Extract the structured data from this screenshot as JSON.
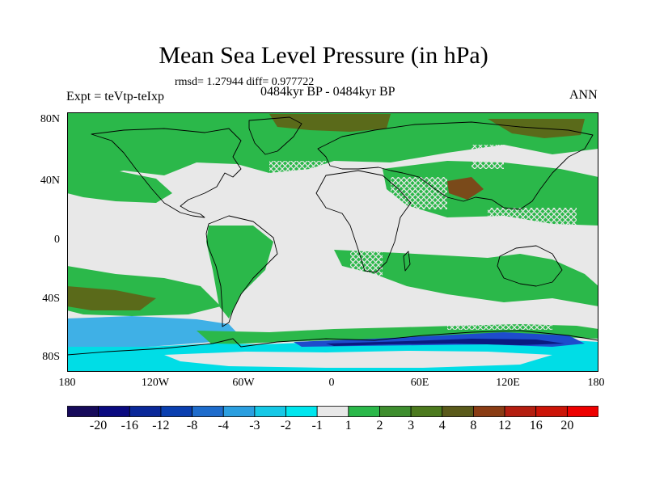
{
  "title": "Mean Sea Level Pressure (in hPa)",
  "stats": "rmsd= 1.27944 diff= 0.977722",
  "period": "0484kyr BP - 0484kyr BP",
  "experiment": "Expt = teVtp-teIxp",
  "season": "ANN",
  "lat_labels": [
    "80N",
    "40N",
    "0",
    "40S",
    "80S"
  ],
  "lon_labels": [
    "180",
    "120W",
    "60W",
    "0",
    "60E",
    "120E",
    "180"
  ],
  "colorbar": {
    "labels": [
      "-20",
      "-16",
      "-12",
      "-8",
      "-4",
      "-3",
      "-2",
      "-1",
      "1",
      "2",
      "3",
      "4",
      "8",
      "12",
      "16",
      "20"
    ],
    "colors": [
      "#160a5a",
      "#0a0a80",
      "#0a2899",
      "#0a3fb0",
      "#1e6ccc",
      "#2b9fe0",
      "#16c8e6",
      "#00e6ee",
      "#e8e8e8",
      "#2bb84a",
      "#3e8e2e",
      "#4c7a1e",
      "#5a5a1a",
      "#8a3c14",
      "#b41e10",
      "#cc1408",
      "#ee0000"
    ]
  },
  "map_colors": {
    "ocean_light": "#e8e8e8",
    "green": "#2bb84a",
    "dark_green": "#3e8e2e",
    "olive": "#5a6a1a",
    "brown": "#7a4a1a",
    "cyan": "#00dde6",
    "light_blue": "#3fb0e6",
    "blue": "#1e4ccc",
    "navy": "#0a1a80",
    "coast": "#000000"
  }
}
